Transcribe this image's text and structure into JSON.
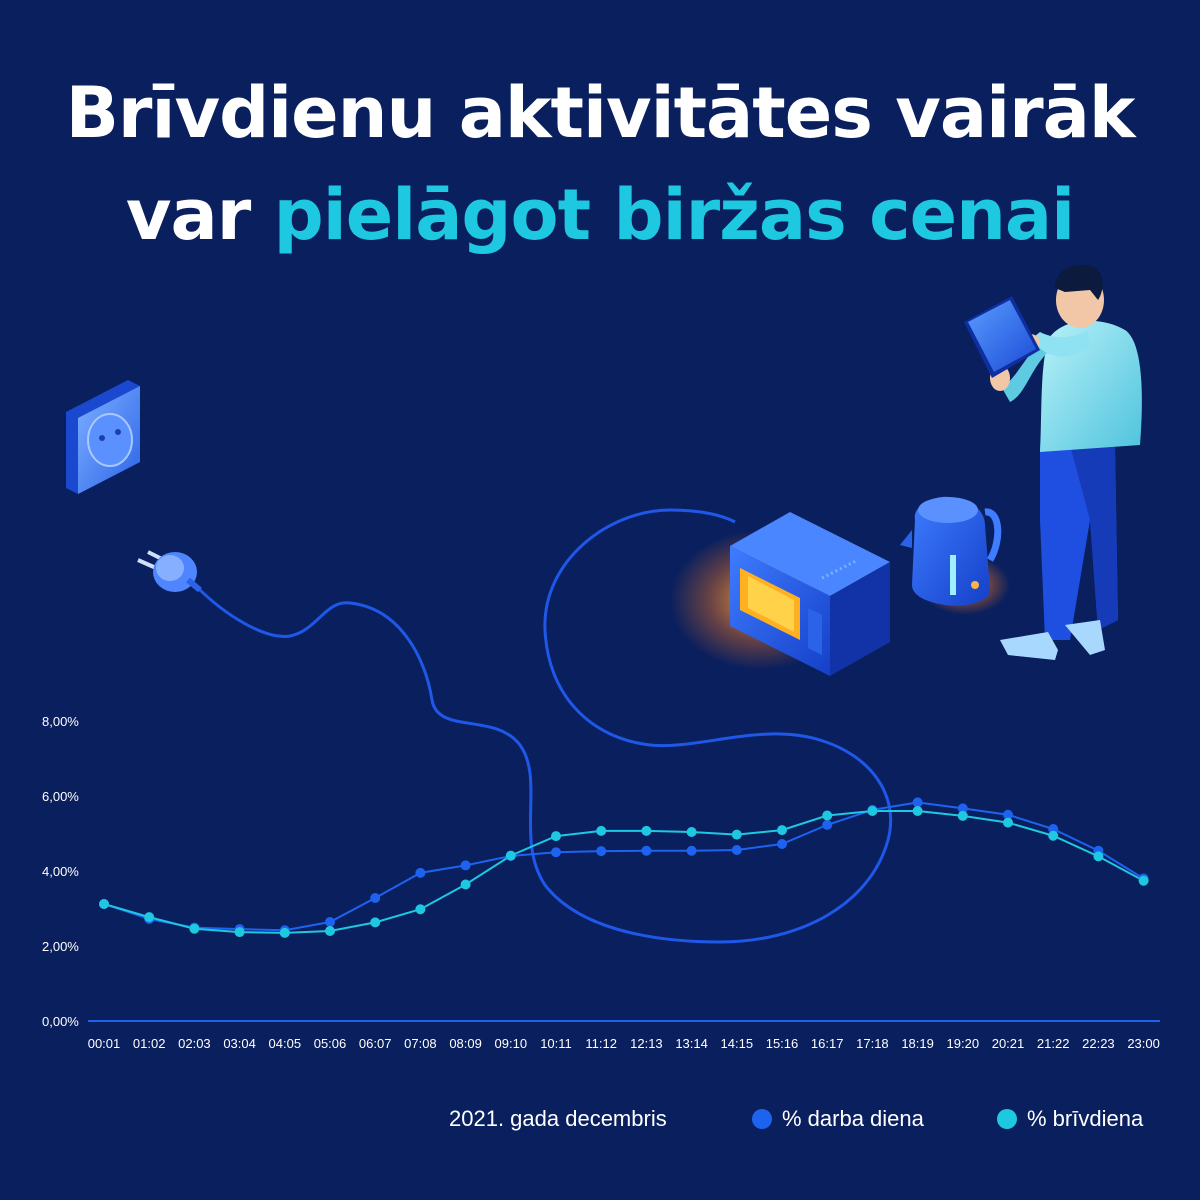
{
  "title": {
    "line1": "Brīvdienu aktivitātes vairāk",
    "line2_plain": "var ",
    "line2_accent": "pielāgot biržas cenai"
  },
  "colors": {
    "background": "#0a1f5e",
    "accent": "#1ec8e0",
    "workday": "#1e63f0",
    "weekend": "#1ec8e0"
  },
  "icons": [
    "power-socket-icon",
    "power-plug-icon",
    "microwave-icon",
    "kettle-icon",
    "person-with-tablet-icon"
  ],
  "chart_data": {
    "type": "line",
    "categories": [
      "00:01",
      "01:02",
      "02:03",
      "03:04",
      "04:05",
      "05:06",
      "06:07",
      "07:08",
      "08:09",
      "09:10",
      "10:11",
      "11:12",
      "12:13",
      "13:14",
      "14:15",
      "15:16",
      "16:17",
      "17:18",
      "18:19",
      "19:20",
      "20:21",
      "21:22",
      "22:23",
      "23:00"
    ],
    "ylim": [
      0,
      8
    ],
    "yticks": [
      0,
      2,
      4,
      6,
      8
    ],
    "ytick_labels": [
      "0,00%",
      "2,00%",
      "4,00%",
      "6,00%",
      "8,00%"
    ],
    "grid": false,
    "legend_position": "bottom-right",
    "series": [
      {
        "name": "% darba diena",
        "color": "#1e63f0",
        "values": [
          3.12,
          2.72,
          2.49,
          2.45,
          2.42,
          2.64,
          3.28,
          3.95,
          4.15,
          4.4,
          4.5,
          4.53,
          4.54,
          4.54,
          4.56,
          4.72,
          5.23,
          5.63,
          5.83,
          5.67,
          5.5,
          5.12,
          4.54,
          3.8
        ]
      },
      {
        "name": "% brīvdiena",
        "color": "#1ec8e0",
        "values": [
          3.12,
          2.77,
          2.46,
          2.37,
          2.35,
          2.4,
          2.63,
          2.98,
          3.64,
          4.41,
          4.93,
          5.07,
          5.07,
          5.04,
          4.97,
          5.09,
          5.48,
          5.6,
          5.6,
          5.47,
          5.29,
          4.94,
          4.39,
          3.74
        ]
      }
    ]
  },
  "legend": {
    "note": "2021. gada decembris",
    "series": [
      {
        "label": "% darba diena",
        "color": "#1e63f0"
      },
      {
        "label": "% brīvdiena",
        "color": "#1ec8e0"
      }
    ]
  }
}
